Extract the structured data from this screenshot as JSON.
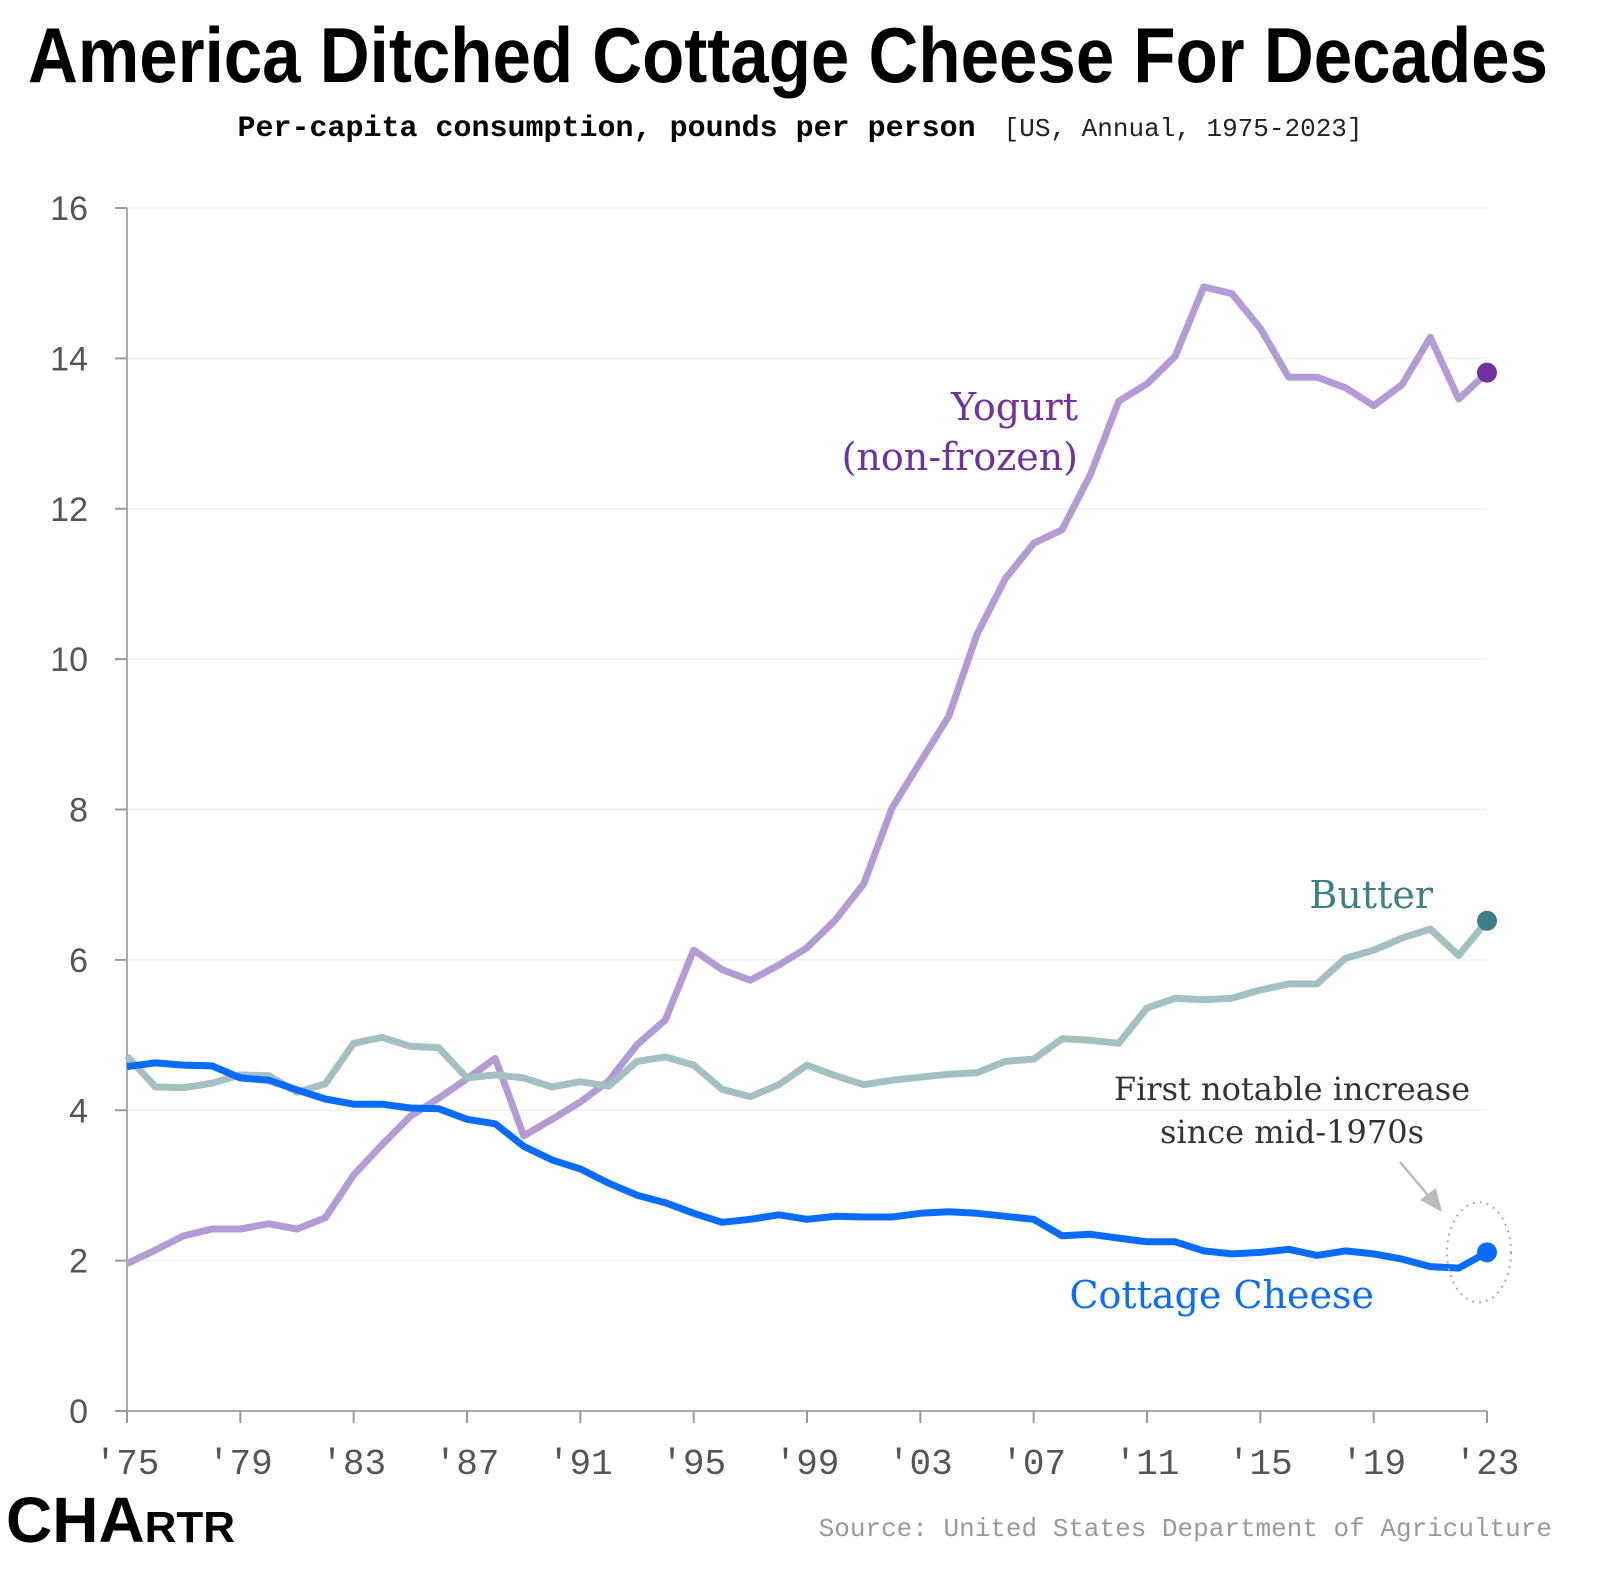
{
  "chart_data": {
    "type": "line",
    "title": "America Ditched Cottage Cheese For Decades",
    "subtitle": "Per-capita consumption, pounds per person",
    "subtitle_note": "[US, Annual, 1975-2023]",
    "source": "Source: United States Department of Agriculture",
    "logo": "CHARTR",
    "ylim": [
      0,
      16
    ],
    "yticks": [
      0,
      2,
      4,
      6,
      8,
      10,
      12,
      14,
      16
    ],
    "xlim": [
      1975,
      2023
    ],
    "xticks": [
      1975,
      1979,
      1983,
      1987,
      1991,
      1995,
      1999,
      2003,
      2007,
      2011,
      2015,
      2019,
      2023
    ],
    "xtick_labels": [
      "'75",
      "'79",
      "'83",
      "'87",
      "'91",
      "'95",
      "'99",
      "'03",
      "'07",
      "'11",
      "'15",
      "'19",
      "'23"
    ],
    "grid": "horizontal",
    "x": [
      1975,
      1976,
      1977,
      1978,
      1979,
      1980,
      1981,
      1982,
      1983,
      1984,
      1985,
      1986,
      1987,
      1988,
      1989,
      1990,
      1991,
      1992,
      1993,
      1994,
      1995,
      1996,
      1997,
      1998,
      1999,
      2000,
      2001,
      2002,
      2003,
      2004,
      2005,
      2006,
      2007,
      2008,
      2009,
      2010,
      2011,
      2012,
      2013,
      2014,
      2015,
      2016,
      2017,
      2018,
      2019,
      2020,
      2021,
      2022,
      2023
    ],
    "series": [
      {
        "name": "Yogurt (non-frozen)",
        "label_lines": [
          "Yogurt",
          "(non-frozen)"
        ],
        "color": "#b59bd6",
        "label_color": "#7030a0",
        "end_dot_color": "#7030a0",
        "values": [
          1.96,
          2.14,
          2.33,
          2.42,
          2.42,
          2.49,
          2.42,
          2.57,
          3.14,
          3.54,
          3.92,
          4.16,
          4.42,
          4.69,
          3.66,
          3.88,
          4.11,
          4.39,
          4.87,
          5.2,
          6.13,
          5.87,
          5.73,
          5.93,
          6.16,
          6.53,
          7.01,
          8.02,
          8.63,
          9.24,
          10.33,
          11.07,
          11.54,
          11.72,
          12.45,
          13.43,
          13.66,
          14.03,
          14.95,
          14.86,
          14.4,
          13.75,
          13.75,
          13.61,
          13.37,
          13.65,
          14.28,
          13.46,
          13.81
        ]
      },
      {
        "name": "Butter",
        "label_lines": [
          "Butter"
        ],
        "color": "#a3c1c2",
        "label_color": "#3d7f86",
        "end_dot_color": "#3d7f86",
        "values": [
          4.72,
          4.31,
          4.3,
          4.36,
          4.47,
          4.46,
          4.24,
          4.35,
          4.89,
          4.97,
          4.85,
          4.83,
          4.43,
          4.47,
          4.43,
          4.31,
          4.38,
          4.32,
          4.65,
          4.71,
          4.6,
          4.28,
          4.18,
          4.34,
          4.6,
          4.46,
          4.34,
          4.4,
          4.44,
          4.48,
          4.5,
          4.65,
          4.68,
          4.95,
          4.93,
          4.89,
          5.36,
          5.49,
          5.47,
          5.49,
          5.6,
          5.68,
          5.68,
          6.02,
          6.13,
          6.29,
          6.41,
          6.06,
          6.52
        ]
      },
      {
        "name": "Cottage Cheese",
        "label_lines": [
          "Cottage Cheese"
        ],
        "color": "#0a6cff",
        "label_color": "#0a6cff",
        "end_dot_color": "#0a6cff",
        "values": [
          4.58,
          4.63,
          4.6,
          4.59,
          4.43,
          4.4,
          4.27,
          4.15,
          4.08,
          4.08,
          4.03,
          4.02,
          3.88,
          3.82,
          3.52,
          3.34,
          3.22,
          3.03,
          2.87,
          2.77,
          2.63,
          2.51,
          2.55,
          2.61,
          2.55,
          2.59,
          2.58,
          2.58,
          2.63,
          2.65,
          2.63,
          2.59,
          2.55,
          2.33,
          2.35,
          2.3,
          2.25,
          2.25,
          2.13,
          2.09,
          2.11,
          2.15,
          2.07,
          2.13,
          2.09,
          2.02,
          1.92,
          1.9,
          2.11
        ]
      }
    ],
    "annotation": {
      "lines": [
        "First notable increase",
        "since mid-1970s"
      ],
      "target_series": "Cottage Cheese",
      "target_x": 2023
    }
  }
}
